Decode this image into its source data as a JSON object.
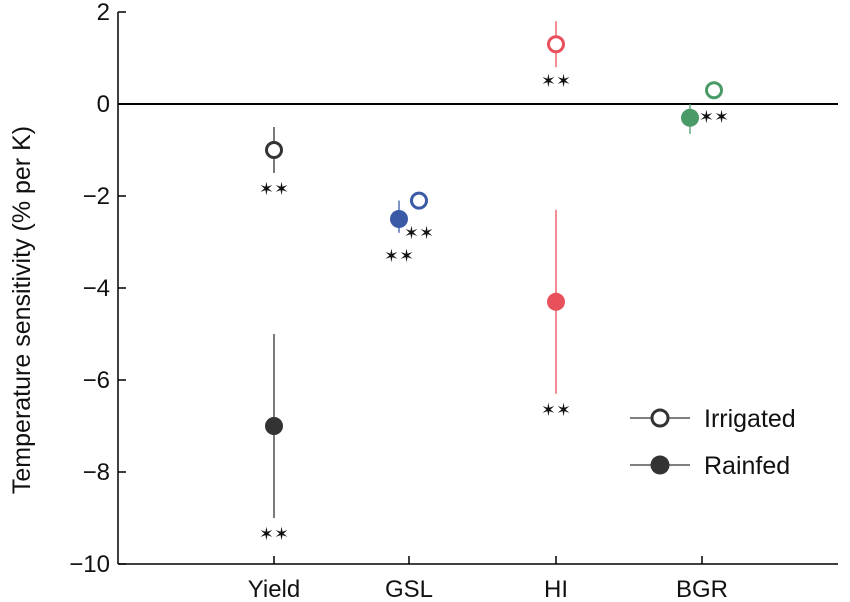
{
  "chart_data": {
    "type": "scatter",
    "ylabel": "Temperature sensitivity (% per K)",
    "ylim": [
      -10,
      2
    ],
    "yticks": [
      2,
      0,
      -2,
      -4,
      -6,
      -8,
      -10
    ],
    "ytick_labels": [
      "2",
      "0",
      "−2",
      "−4",
      "−6",
      "−8",
      "−10"
    ],
    "categories": [
      "Yield",
      "GSL",
      "HI",
      "BGR"
    ],
    "zero_line": true,
    "legend": {
      "position": "lower-right",
      "entries": [
        {
          "label": "Irrigated",
          "marker": "open-circle"
        },
        {
          "label": "Rainfed",
          "marker": "filled-circle"
        }
      ]
    },
    "significance_marker": "✶✶",
    "series": [
      {
        "name": "Irrigated",
        "marker": "open",
        "points": [
          {
            "category": "Yield",
            "value": -1.0,
            "err_low": -1.5,
            "err_high": -0.5,
            "color": "#333333",
            "sig": true,
            "sig_y": -1.85
          },
          {
            "category": "GSL",
            "value": -2.1,
            "err_low": -2.2,
            "err_high": -2.0,
            "color": "#3a5aa8",
            "sig": true,
            "sig_y": -2.8
          },
          {
            "category": "HI",
            "value": 1.3,
            "err_low": 0.8,
            "err_high": 1.8,
            "color": "#e8505b",
            "sig": true,
            "sig_y": 0.5
          },
          {
            "category": "BGR",
            "value": 0.3,
            "err_low": 0.2,
            "err_high": 0.4,
            "color": "#4a9a68",
            "sig": true,
            "sig_y": -0.28
          }
        ]
      },
      {
        "name": "Rainfed",
        "marker": "filled",
        "points": [
          {
            "category": "Yield",
            "value": -7.0,
            "err_low": -9.0,
            "err_high": -5.0,
            "color": "#333333",
            "sig": true,
            "sig_y": -9.35
          },
          {
            "category": "GSL",
            "value": -2.5,
            "err_low": -2.8,
            "err_high": -2.1,
            "color": "#3a5aa8",
            "sig": true,
            "sig_y": -3.3
          },
          {
            "category": "HI",
            "value": -4.3,
            "err_low": -6.3,
            "err_high": -2.3,
            "color": "#e8505b",
            "sig": true,
            "sig_y": -6.65
          },
          {
            "category": "BGR",
            "value": -0.3,
            "err_low": -0.65,
            "err_high": 0.0,
            "color": "#4a9a68",
            "sig": false
          }
        ]
      }
    ]
  }
}
